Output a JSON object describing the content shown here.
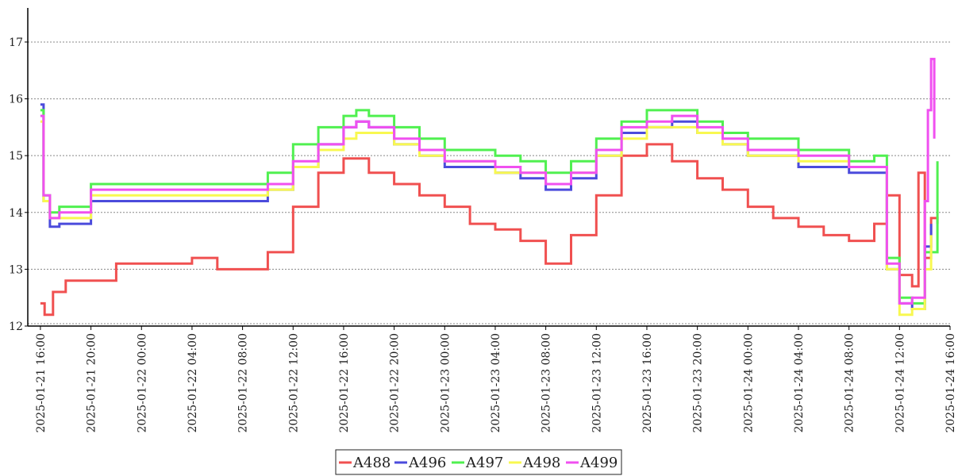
{
  "chart_data": {
    "type": "line",
    "title": "",
    "xlabel": "",
    "ylabel": "",
    "ylim": [
      12,
      17.6
    ],
    "y_ticks": [
      12,
      13,
      14,
      15,
      16,
      17
    ],
    "x_ticks": [
      "2025-01-21 16:00",
      "2025-01-21 20:00",
      "2025-01-22 00:00",
      "2025-01-22 04:00",
      "2025-01-22 08:00",
      "2025-01-22 12:00",
      "2025-01-22 16:00",
      "2025-01-22 20:00",
      "2025-01-23 00:00",
      "2025-01-23 04:00",
      "2025-01-23 08:00",
      "2025-01-23 12:00",
      "2025-01-23 16:00",
      "2025-01-23 20:00",
      "2025-01-24 00:00",
      "2025-01-24 04:00",
      "2025-01-24 08:00",
      "2025-01-24 12:00",
      "2025-01-24 16:00"
    ],
    "xlim": [
      "2025-01-21 15:00",
      "2025-01-24 16:00"
    ],
    "grid": "horizontal-dotted",
    "legend": {
      "position": "bottom-center",
      "entries": [
        "A488",
        "A496",
        "A497",
        "A498",
        "A499"
      ]
    },
    "series": [
      {
        "name": "A488",
        "color": "#f05050",
        "x": [
          "2025-01-21 16:00",
          "2025-01-21 16:20",
          "2025-01-21 17:00",
          "2025-01-21 18:00",
          "2025-01-21 20:00",
          "2025-01-21 22:00",
          "2025-01-22 00:00",
          "2025-01-22 04:00",
          "2025-01-22 06:00",
          "2025-01-22 08:00",
          "2025-01-22 10:00",
          "2025-01-22 12:00",
          "2025-01-22 14:00",
          "2025-01-22 16:00",
          "2025-01-22 18:00",
          "2025-01-22 20:00",
          "2025-01-22 22:00",
          "2025-01-23 00:00",
          "2025-01-23 02:00",
          "2025-01-23 04:00",
          "2025-01-23 06:00",
          "2025-01-23 08:00",
          "2025-01-23 10:00",
          "2025-01-23 12:00",
          "2025-01-23 14:00",
          "2025-01-23 16:00",
          "2025-01-23 18:00",
          "2025-01-23 20:00",
          "2025-01-23 22:00",
          "2025-01-24 00:00",
          "2025-01-24 02:00",
          "2025-01-24 04:00",
          "2025-01-24 06:00",
          "2025-01-24 08:00",
          "2025-01-24 10:00",
          "2025-01-24 11:00",
          "2025-01-24 12:00",
          "2025-01-24 13:00",
          "2025-01-24 13:30",
          "2025-01-24 14:00",
          "2025-01-24 14:30",
          "2025-01-24 15:00"
        ],
        "y": [
          12.4,
          12.2,
          12.6,
          12.8,
          12.8,
          13.1,
          13.1,
          13.2,
          13.0,
          13.0,
          13.3,
          14.1,
          14.7,
          14.95,
          14.7,
          14.5,
          14.3,
          14.1,
          13.8,
          13.7,
          13.5,
          13.1,
          13.6,
          14.3,
          15.0,
          15.2,
          14.9,
          14.6,
          14.4,
          14.1,
          13.9,
          13.75,
          13.6,
          13.5,
          13.8,
          14.3,
          12.9,
          12.7,
          14.7,
          13.2,
          13.9,
          13.8
        ]
      },
      {
        "name": "A496",
        "color": "#4b4bdc",
        "x": [
          "2025-01-21 16:00",
          "2025-01-21 16:15",
          "2025-01-21 16:45",
          "2025-01-21 17:30",
          "2025-01-21 20:00",
          "2025-01-22 00:00",
          "2025-01-22 08:00",
          "2025-01-22 10:00",
          "2025-01-22 12:00",
          "2025-01-22 14:00",
          "2025-01-22 16:00",
          "2025-01-22 17:00",
          "2025-01-22 18:00",
          "2025-01-22 20:00",
          "2025-01-22 22:00",
          "2025-01-23 00:00",
          "2025-01-23 04:00",
          "2025-01-23 06:00",
          "2025-01-23 08:00",
          "2025-01-23 10:00",
          "2025-01-23 12:00",
          "2025-01-23 14:00",
          "2025-01-23 16:00",
          "2025-01-23 18:00",
          "2025-01-23 20:00",
          "2025-01-23 22:00",
          "2025-01-24 00:00",
          "2025-01-24 04:00",
          "2025-01-24 08:00",
          "2025-01-24 10:00",
          "2025-01-24 11:00",
          "2025-01-24 12:00",
          "2025-01-24 13:00",
          "2025-01-24 14:00",
          "2025-01-24 14:30"
        ],
        "y": [
          15.9,
          14.2,
          13.75,
          13.8,
          14.2,
          14.2,
          14.2,
          14.4,
          14.8,
          15.2,
          15.5,
          15.6,
          15.5,
          15.2,
          15.0,
          14.8,
          14.7,
          14.6,
          14.4,
          14.6,
          15.0,
          15.4,
          15.5,
          15.6,
          15.4,
          15.2,
          15.0,
          14.8,
          14.7,
          14.7,
          13.0,
          12.4,
          12.3,
          13.4,
          13.8
        ]
      },
      {
        "name": "A497",
        "color": "#50f050",
        "x": [
          "2025-01-21 16:00",
          "2025-01-21 16:15",
          "2025-01-21 16:45",
          "2025-01-21 17:30",
          "2025-01-21 20:00",
          "2025-01-22 00:00",
          "2025-01-22 08:00",
          "2025-01-22 10:00",
          "2025-01-22 12:00",
          "2025-01-22 14:00",
          "2025-01-22 16:00",
          "2025-01-22 17:00",
          "2025-01-22 18:00",
          "2025-01-22 20:00",
          "2025-01-22 22:00",
          "2025-01-23 00:00",
          "2025-01-23 04:00",
          "2025-01-23 06:00",
          "2025-01-23 08:00",
          "2025-01-23 10:00",
          "2025-01-23 12:00",
          "2025-01-23 14:00",
          "2025-01-23 16:00",
          "2025-01-23 18:00",
          "2025-01-23 20:00",
          "2025-01-23 22:00",
          "2025-01-24 00:00",
          "2025-01-24 04:00",
          "2025-01-24 08:00",
          "2025-01-24 10:00",
          "2025-01-24 11:00",
          "2025-01-24 12:00",
          "2025-01-24 13:00",
          "2025-01-24 14:00",
          "2025-01-24 15:00"
        ],
        "y": [
          15.8,
          14.3,
          14.0,
          14.1,
          14.5,
          14.5,
          14.5,
          14.7,
          15.2,
          15.5,
          15.7,
          15.8,
          15.7,
          15.5,
          15.3,
          15.1,
          15.0,
          14.9,
          14.7,
          14.9,
          15.3,
          15.6,
          15.8,
          15.8,
          15.6,
          15.4,
          15.3,
          15.1,
          14.9,
          15.0,
          13.2,
          12.5,
          12.4,
          13.3,
          14.9
        ]
      },
      {
        "name": "A498",
        "color": "#f8f850",
        "x": [
          "2025-01-21 16:00",
          "2025-01-21 16:15",
          "2025-01-21 16:45",
          "2025-01-21 17:30",
          "2025-01-21 20:00",
          "2025-01-22 00:00",
          "2025-01-22 08:00",
          "2025-01-22 10:00",
          "2025-01-22 12:00",
          "2025-01-22 14:00",
          "2025-01-22 16:00",
          "2025-01-22 17:00",
          "2025-01-22 18:00",
          "2025-01-22 20:00",
          "2025-01-22 22:00",
          "2025-01-23 00:00",
          "2025-01-23 04:00",
          "2025-01-23 06:00",
          "2025-01-23 08:00",
          "2025-01-23 10:00",
          "2025-01-23 12:00",
          "2025-01-23 14:00",
          "2025-01-23 16:00",
          "2025-01-23 18:00",
          "2025-01-23 20:00",
          "2025-01-23 22:00",
          "2025-01-24 00:00",
          "2025-01-24 04:00",
          "2025-01-24 08:00",
          "2025-01-24 10:00",
          "2025-01-24 11:00",
          "2025-01-24 12:00",
          "2025-01-24 13:00",
          "2025-01-24 14:00",
          "2025-01-24 14:30"
        ],
        "y": [
          15.6,
          14.2,
          13.9,
          13.9,
          14.3,
          14.3,
          14.3,
          14.4,
          14.8,
          15.1,
          15.3,
          15.4,
          15.4,
          15.2,
          15.0,
          14.9,
          14.7,
          14.7,
          14.5,
          14.7,
          15.0,
          15.3,
          15.5,
          15.5,
          15.4,
          15.2,
          15.0,
          14.9,
          14.8,
          14.8,
          13.0,
          12.2,
          12.3,
          13.0,
          13.6
        ]
      },
      {
        "name": "A499",
        "color": "#f050f0",
        "x": [
          "2025-01-21 16:00",
          "2025-01-21 16:15",
          "2025-01-21 16:45",
          "2025-01-21 17:30",
          "2025-01-21 20:00",
          "2025-01-22 00:00",
          "2025-01-22 08:00",
          "2025-01-22 10:00",
          "2025-01-22 12:00",
          "2025-01-22 14:00",
          "2025-01-22 16:00",
          "2025-01-22 17:00",
          "2025-01-22 18:00",
          "2025-01-22 20:00",
          "2025-01-22 22:00",
          "2025-01-23 00:00",
          "2025-01-23 04:00",
          "2025-01-23 06:00",
          "2025-01-23 08:00",
          "2025-01-23 10:00",
          "2025-01-23 12:00",
          "2025-01-23 14:00",
          "2025-01-23 16:00",
          "2025-01-23 18:00",
          "2025-01-23 20:00",
          "2025-01-23 22:00",
          "2025-01-24 00:00",
          "2025-01-24 04:00",
          "2025-01-24 08:00",
          "2025-01-24 10:00",
          "2025-01-24 11:00",
          "2025-01-24 12:00",
          "2025-01-24 13:00",
          "2025-01-24 14:00",
          "2025-01-24 14:15",
          "2025-01-24 14:30",
          "2025-01-24 14:45"
        ],
        "y": [
          15.7,
          14.3,
          13.9,
          14.0,
          14.4,
          14.4,
          14.4,
          14.5,
          14.9,
          15.2,
          15.5,
          15.6,
          15.5,
          15.3,
          15.1,
          14.9,
          14.8,
          14.7,
          14.5,
          14.7,
          15.1,
          15.5,
          15.6,
          15.7,
          15.5,
          15.3,
          15.1,
          15.0,
          14.8,
          14.8,
          13.1,
          12.4,
          12.5,
          14.2,
          15.8,
          16.7,
          15.3
        ]
      }
    ]
  }
}
